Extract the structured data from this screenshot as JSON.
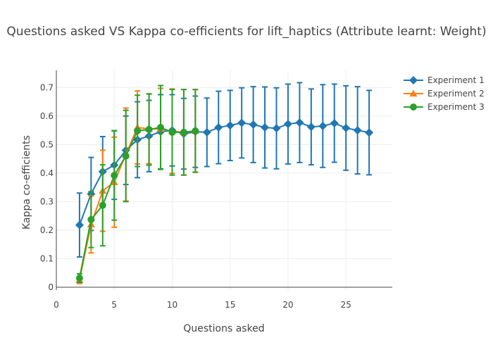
{
  "chart_data": {
    "type": "line",
    "title": "Questions asked VS Kappa co-efficients for lift_haptics (Attribute learnt: Weight)",
    "xlabel": "Questions asked",
    "ylabel": "Kappa co-efficients",
    "xlim": [
      0,
      29
    ],
    "ylim": [
      -0.01,
      0.76
    ],
    "xticks": [
      0,
      5,
      10,
      15,
      20,
      25
    ],
    "yticks": [
      0,
      0.1,
      0.2,
      0.3,
      0.4,
      0.5,
      0.6,
      0.7
    ],
    "grid": true,
    "legend": "top-right",
    "series": [
      {
        "name": "Experiment 1",
        "color": "#1f77b4",
        "marker": "diamond",
        "x": [
          2,
          3,
          4,
          5,
          6,
          7,
          8,
          9,
          10,
          11,
          12,
          13,
          14,
          15,
          16,
          17,
          18,
          19,
          20,
          21,
          22,
          23,
          24,
          25,
          26,
          27
        ],
        "y": [
          0.218,
          0.327,
          0.405,
          0.428,
          0.48,
          0.517,
          0.53,
          0.545,
          0.55,
          0.538,
          0.545,
          0.543,
          0.56,
          0.567,
          0.576,
          0.57,
          0.56,
          0.557,
          0.572,
          0.577,
          0.562,
          0.565,
          0.575,
          0.558,
          0.55,
          0.542
        ],
        "err": [
          0.112,
          0.128,
          0.123,
          0.12,
          0.12,
          0.133,
          0.125,
          0.13,
          0.125,
          0.124,
          0.125,
          0.12,
          0.127,
          0.123,
          0.123,
          0.133,
          0.142,
          0.142,
          0.14,
          0.14,
          0.133,
          0.145,
          0.137,
          0.148,
          0.153,
          0.148
        ]
      },
      {
        "name": "Experiment 2",
        "color": "#ff7f0e",
        "marker": "triangle-up",
        "x": [
          2,
          3,
          4,
          5,
          6,
          7,
          8,
          9,
          10,
          11,
          12
        ],
        "y": [
          0.025,
          0.22,
          0.338,
          0.368,
          0.465,
          0.56,
          0.555,
          0.555,
          0.547,
          0.543,
          0.548
        ],
        "err": [
          0.012,
          0.1,
          0.142,
          0.158,
          0.163,
          0.128,
          0.122,
          0.142,
          0.148,
          0.15,
          0.145
        ]
      },
      {
        "name": "Experiment 3",
        "color": "#2ca02c",
        "marker": "circle",
        "x": [
          2,
          3,
          4,
          5,
          6,
          7,
          8,
          9,
          10,
          11,
          12
        ],
        "y": [
          0.032,
          0.237,
          0.287,
          0.392,
          0.46,
          0.548,
          0.553,
          0.56,
          0.543,
          0.543,
          0.548
        ],
        "err": [
          0.015,
          0.098,
          0.142,
          0.157,
          0.16,
          0.125,
          0.125,
          0.147,
          0.15,
          0.15,
          0.145
        ]
      }
    ]
  }
}
